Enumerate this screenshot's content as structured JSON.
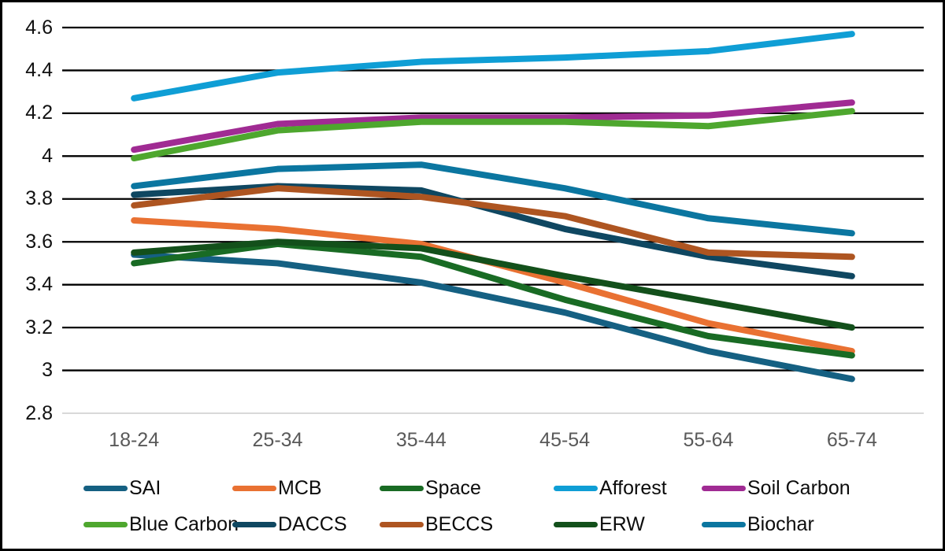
{
  "chart_data": {
    "type": "line",
    "categories": [
      "18-24",
      "25-34",
      "35-44",
      "45-54",
      "55-64",
      "65-74"
    ],
    "series": [
      {
        "name": "SAI",
        "color": "#156082",
        "values": [
          3.54,
          3.5,
          3.41,
          3.27,
          3.09,
          2.96
        ]
      },
      {
        "name": "MCB",
        "color": "#E97132",
        "values": [
          3.7,
          3.66,
          3.59,
          3.41,
          3.22,
          3.09
        ]
      },
      {
        "name": "Space",
        "color": "#196B24",
        "values": [
          3.5,
          3.59,
          3.53,
          3.33,
          3.16,
          3.07
        ]
      },
      {
        "name": "Afforest",
        "color": "#0F9ED5",
        "values": [
          4.27,
          4.39,
          4.44,
          4.46,
          4.49,
          4.57
        ]
      },
      {
        "name": "Soil Carbon",
        "color": "#A02B93",
        "values": [
          4.03,
          4.15,
          4.18,
          4.18,
          4.19,
          4.25
        ]
      },
      {
        "name": "Blue Carbon",
        "color": "#4EA72E",
        "values": [
          3.99,
          4.12,
          4.16,
          4.16,
          4.14,
          4.21
        ]
      },
      {
        "name": "DACCS",
        "color": "#0F4761",
        "values": [
          3.82,
          3.86,
          3.84,
          3.66,
          3.53,
          3.44
        ]
      },
      {
        "name": "BECCS",
        "color": "#AE5521",
        "values": [
          3.77,
          3.85,
          3.81,
          3.72,
          3.55,
          3.53
        ]
      },
      {
        "name": "ERW",
        "color": "#13501B",
        "values": [
          3.55,
          3.6,
          3.57,
          3.44,
          3.32,
          3.2
        ]
      },
      {
        "name": "Biochar",
        "color": "#0B76A0",
        "values": [
          3.86,
          3.94,
          3.96,
          3.85,
          3.71,
          3.64
        ]
      }
    ],
    "title": "",
    "xlabel": "",
    "ylabel": "",
    "ylim": [
      2.8,
      4.6
    ],
    "y_ticks": [
      4.6,
      4.4,
      4.2,
      4.0,
      3.8,
      3.6,
      3.4,
      3.2,
      3.0,
      2.8
    ],
    "y_tick_labels": [
      "4.6",
      "4.4",
      "4.2",
      "4",
      "3.8",
      "3.6",
      "3.4",
      "3.2",
      "3",
      "2.8"
    ],
    "grid": "horizontal",
    "gridline_color": "#000000",
    "baseline_color": "#D9D9D9",
    "y_tick_label_color": "#111111",
    "x_tick_label_color": "#595959",
    "legend_position": "bottom",
    "legend_rows": 2,
    "line_width": 8
  }
}
